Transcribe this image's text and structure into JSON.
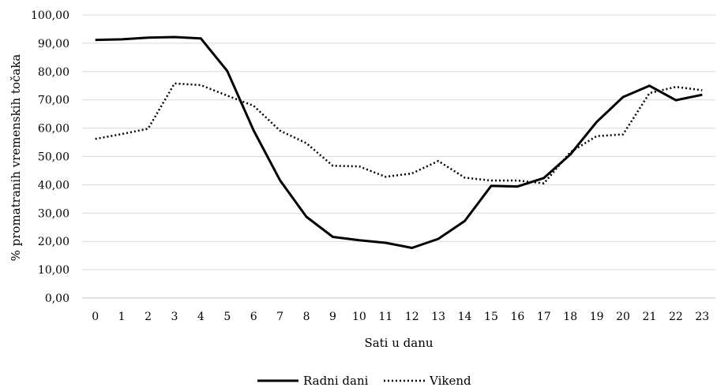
{
  "chart_data": {
    "type": "line",
    "title": "",
    "xlabel": "Sati u danu",
    "ylabel": "% promatranih vremenskih točaka",
    "x": [
      "0",
      "1",
      "2",
      "3",
      "4",
      "5",
      "6",
      "7",
      "8",
      "9",
      "10",
      "11",
      "12",
      "13",
      "14",
      "15",
      "16",
      "17",
      "18",
      "19",
      "20",
      "21",
      "22",
      "23"
    ],
    "ylim": [
      0,
      100
    ],
    "yticks": [
      "0,00",
      "10,00",
      "20,00",
      "30,00",
      "40,00",
      "50,00",
      "60,00",
      "70,00",
      "80,00",
      "90,00",
      "100,00"
    ],
    "grid": true,
    "legend_position": "bottom",
    "series": [
      {
        "name": "Radni dani",
        "style": "solid",
        "color": "#000000",
        "values": [
          91.2,
          91.4,
          92.0,
          92.2,
          91.7,
          80.2,
          59.2,
          41.6,
          28.7,
          21.6,
          20.4,
          19.5,
          17.7,
          20.9,
          27.2,
          39.6,
          39.4,
          42.4,
          50.7,
          62.2,
          71.0,
          75.0,
          69.9,
          71.8
        ]
      },
      {
        "name": "Vikend",
        "style": "dotted",
        "color": "#000000",
        "values": [
          56.2,
          57.9,
          59.8,
          75.8,
          75.2,
          71.5,
          67.9,
          59.1,
          54.7,
          46.7,
          46.5,
          42.8,
          44.0,
          48.4,
          42.5,
          41.5,
          41.5,
          40.5,
          51.5,
          57.2,
          57.8,
          72.4,
          74.6,
          73.4
        ]
      }
    ]
  }
}
